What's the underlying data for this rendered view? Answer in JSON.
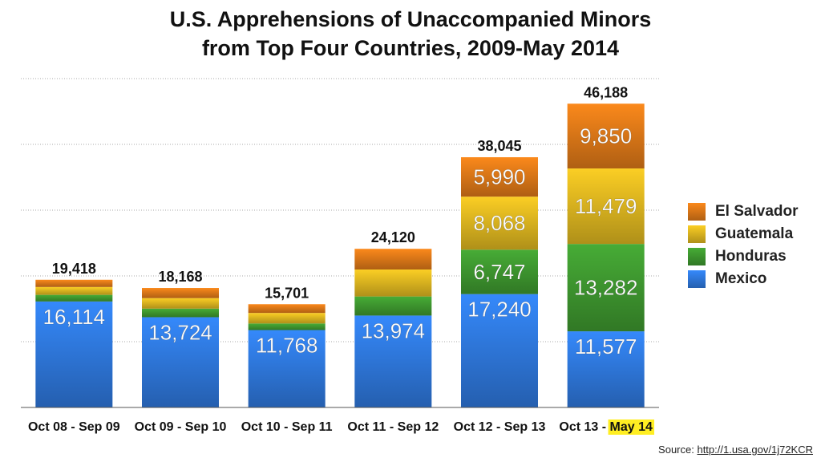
{
  "title": {
    "line1": "U.S. Apprehensions of Unaccompanied Minors",
    "line2": "from Top Four Countries, 2009-May 2014"
  },
  "colors": {
    "Mexico": "#2f7ae0",
    "Honduras": "#3f9a30",
    "Guatemala": "#e0b820",
    "El Salvador": "#e07a18"
  },
  "legend": [
    "El Salvador",
    "Guatemala",
    "Honduras",
    "Mexico"
  ],
  "source": {
    "label": "Source: ",
    "link": "http://1.usa.gov/1j72KCR"
  },
  "chart_data": {
    "type": "bar",
    "stacked": true,
    "categories": [
      "Oct 08 - Sep 09",
      "Oct 09 - Sep 10",
      "Oct 10 - Sep 11",
      "Oct 11 - Sep 12",
      "Oct 12 - Sep 13",
      "Oct 13 - May 14"
    ],
    "category_highlight": {
      "index": 5,
      "prefix": "Oct 13 - ",
      "highlighted": "May 14"
    },
    "totals": [
      19418,
      18168,
      15701,
      24120,
      38045,
      46188
    ],
    "total_labels": [
      "19,418",
      "18,168",
      "15,701",
      "24,120",
      "38,045",
      "46,188"
    ],
    "series": [
      {
        "name": "Mexico",
        "values": [
          16114,
          13724,
          11768,
          13974,
          17240,
          11577
        ],
        "labels": [
          "16,114",
          "13,724",
          "11,768",
          "13,974",
          "17,240",
          "11,577"
        ]
      },
      {
        "name": "Honduras",
        "values": [
          1000,
          1300,
          1000,
          2900,
          6747,
          13282
        ],
        "labels": [
          "",
          "",
          "",
          "",
          "6,747",
          "13,282"
        ]
      },
      {
        "name": "Guatemala",
        "values": [
          1200,
          1600,
          1600,
          4100,
          8068,
          11479
        ],
        "labels": [
          "",
          "",
          "",
          "",
          "8,068",
          "11,479"
        ]
      },
      {
        "name": "El Salvador",
        "values": [
          1104,
          1544,
          1333,
          3146,
          5990,
          9850
        ],
        "labels": [
          "",
          "",
          "",
          "",
          "5,990",
          "9,850"
        ]
      }
    ],
    "ylim": [
      0,
      50000
    ],
    "grid": true,
    "legend_position": "right"
  }
}
